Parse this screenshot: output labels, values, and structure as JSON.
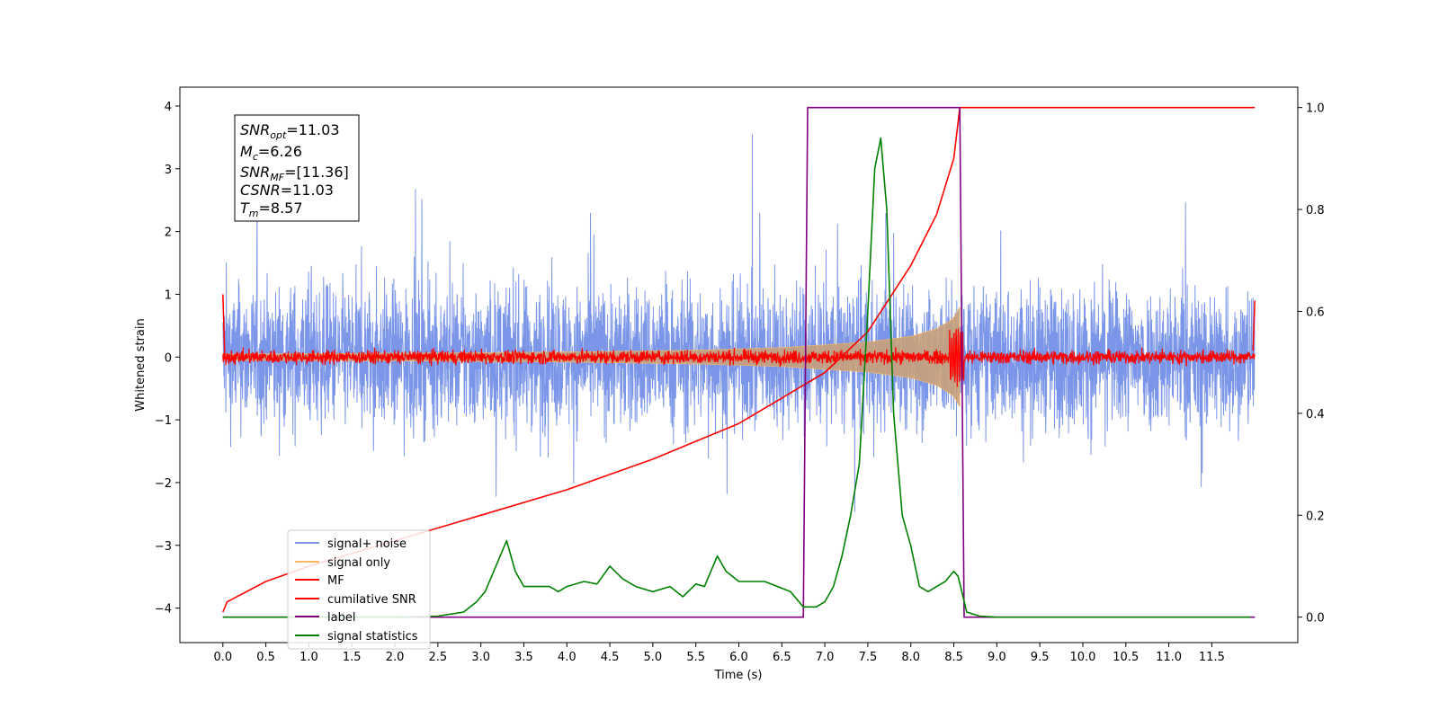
{
  "chart_data": {
    "type": "line",
    "xlabel": "Time (s)",
    "ylabel": "Whitened strain",
    "xlim": [
      -0.5,
      12.5
    ],
    "ylim": [
      -4.55,
      4.3
    ],
    "y2lim": [
      -0.05,
      1.04
    ],
    "x_ticks": [
      "0.0",
      "0.5",
      "1.0",
      "1.5",
      "2.0",
      "2.5",
      "3.0",
      "3.5",
      "4.0",
      "4.5",
      "5.0",
      "5.5",
      "6.0",
      "6.5",
      "7.0",
      "7.5",
      "8.0",
      "8.5",
      "9.0",
      "9.5",
      "10.0",
      "10.5",
      "11.0",
      "11.5"
    ],
    "y_ticks": [
      "4",
      "3",
      "2",
      "1",
      "0",
      "−1",
      "−2",
      "−3",
      "−4"
    ],
    "y2_ticks": [
      "1.0",
      "0.8",
      "0.6",
      "0.4",
      "0.2",
      "0.0"
    ],
    "annotation": {
      "snr_opt": {
        "main": "SNR",
        "sub": "opt",
        "value": "=11.03"
      },
      "mc": {
        "main": "M",
        "sub": "c",
        "value": "=6.26"
      },
      "snr_mf": {
        "main": "SNR",
        "sub": "MF",
        "value": "=[11.36]"
      },
      "csnr": {
        "main": "CSNR",
        "sub": "",
        "value": "=11.03"
      },
      "tm": {
        "main": "T",
        "sub": "m",
        "value": "=8.57"
      }
    },
    "series": [
      {
        "name": "signal+ noise",
        "color": "#7b96e8",
        "axis": "left",
        "noise_amplitude": 3.4
      },
      {
        "name": "signal only",
        "color": "#fdb863",
        "axis": "left",
        "envelope": {
          "x": [
            0.0,
            2.0,
            4.0,
            5.5,
            6.5,
            7.5,
            8.0,
            8.3,
            8.5,
            8.57
          ],
          "amp": [
            0.05,
            0.06,
            0.08,
            0.11,
            0.15,
            0.24,
            0.33,
            0.45,
            0.62,
            0.8
          ]
        }
      },
      {
        "name": "MF",
        "color": "#ff0000",
        "axis": "left",
        "noise_amplitude": 0.12
      },
      {
        "name": "cumilative SNR",
        "color": "#ff0000",
        "axis": "right",
        "x": [
          0.0,
          0.05,
          0.5,
          1.0,
          2.0,
          3.0,
          4.0,
          5.0,
          6.0,
          6.5,
          7.0,
          7.5,
          8.0,
          8.3,
          8.5,
          8.57,
          12.0
        ],
        "y": [
          0.01,
          0.03,
          0.07,
          0.1,
          0.15,
          0.2,
          0.25,
          0.31,
          0.38,
          0.43,
          0.48,
          0.56,
          0.69,
          0.79,
          0.9,
          1.0,
          1.0
        ]
      },
      {
        "name": "label",
        "color": "#800080",
        "axis": "right",
        "x": [
          0.0,
          6.75,
          6.8,
          8.57,
          8.62,
          12.0
        ],
        "y": [
          0.0,
          0.0,
          1.0,
          1.0,
          0.0,
          0.0
        ]
      },
      {
        "name": "signal statistics",
        "color": "#008000",
        "axis": "right",
        "x": [
          0.0,
          1.0,
          2.0,
          2.5,
          2.8,
          2.95,
          3.05,
          3.2,
          3.3,
          3.4,
          3.5,
          3.6,
          3.8,
          3.9,
          4.0,
          4.2,
          4.35,
          4.5,
          4.65,
          4.8,
          5.0,
          5.2,
          5.35,
          5.5,
          5.6,
          5.75,
          5.85,
          6.0,
          6.15,
          6.3,
          6.45,
          6.6,
          6.75,
          6.9,
          7.0,
          7.1,
          7.2,
          7.3,
          7.4,
          7.5,
          7.58,
          7.65,
          7.72,
          7.8,
          7.9,
          8.0,
          8.1,
          8.2,
          8.3,
          8.4,
          8.5,
          8.55,
          8.65,
          8.8,
          9.0,
          10.0,
          11.0,
          11.95
        ],
        "y": [
          0.0,
          0.0,
          0.0,
          0.002,
          0.01,
          0.03,
          0.05,
          0.11,
          0.15,
          0.09,
          0.06,
          0.06,
          0.06,
          0.05,
          0.06,
          0.07,
          0.065,
          0.1,
          0.075,
          0.06,
          0.05,
          0.06,
          0.04,
          0.065,
          0.06,
          0.12,
          0.09,
          0.07,
          0.07,
          0.07,
          0.06,
          0.05,
          0.02,
          0.02,
          0.03,
          0.06,
          0.12,
          0.2,
          0.3,
          0.6,
          0.88,
          0.94,
          0.8,
          0.4,
          0.2,
          0.14,
          0.06,
          0.05,
          0.06,
          0.07,
          0.09,
          0.08,
          0.01,
          0.002,
          0.0,
          0.0,
          0.0,
          0.0
        ]
      }
    ],
    "legend": {
      "placement": "lower-left",
      "entries": [
        "signal+ noise",
        "signal only",
        "MF",
        "cumilative SNR",
        "label",
        "signal statistics"
      ]
    }
  }
}
